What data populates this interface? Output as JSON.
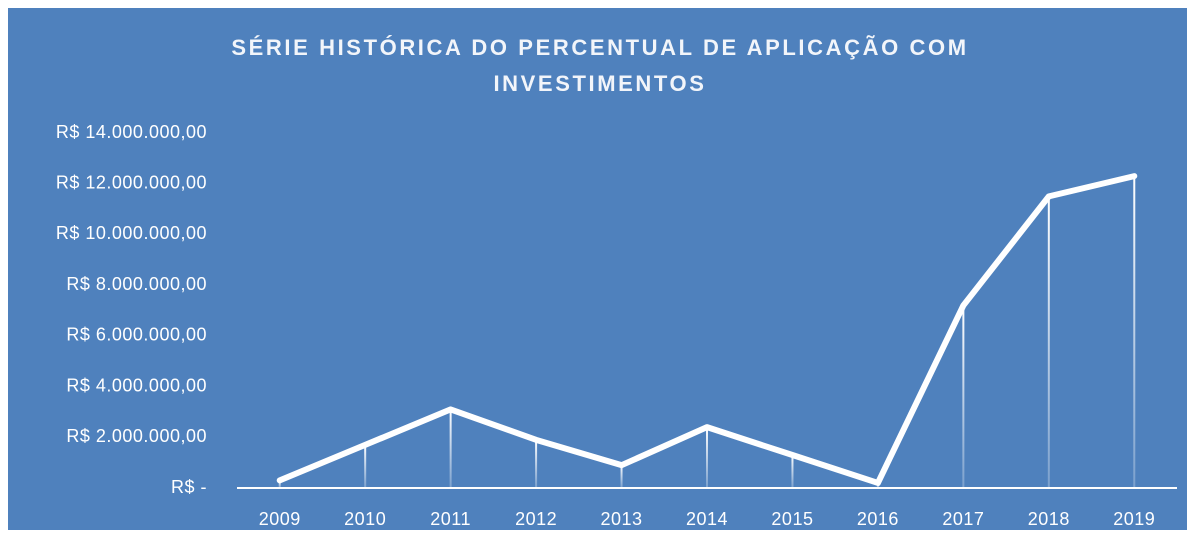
{
  "chart_data": {
    "type": "line",
    "title": "SÉRIE HISTÓRICA DO PERCENTUAL DE APLICAÇÃO COM INVESTIMENTOS",
    "categories": [
      "2009",
      "2010",
      "2011",
      "2012",
      "2013",
      "2014",
      "2015",
      "2016",
      "2017",
      "2018",
      "2019"
    ],
    "values": [
      300000,
      1700000,
      3100000,
      1900000,
      900000,
      2400000,
      1300000,
      200000,
      7200000,
      11500000,
      12300000
    ],
    "color": "#ffffff",
    "ylim": [
      0,
      14000000
    ],
    "yticks": [
      {
        "value": 0,
        "label": "R$ -"
      },
      {
        "value": 2000000,
        "label": "R$ 2.000.000,00"
      },
      {
        "value": 4000000,
        "label": "R$ 4.000.000,00"
      },
      {
        "value": 6000000,
        "label": "R$ 6.000.000,00"
      },
      {
        "value": 8000000,
        "label": "R$ 8.000.000,00"
      },
      {
        "value": 10000000,
        "label": "R$ 10.000.000,00"
      },
      {
        "value": 12000000,
        "label": "R$ 12.000.000,00"
      },
      {
        "value": 14000000,
        "label": "R$ 14.000.000,00"
      }
    ],
    "grid": false,
    "drop_lines": true
  }
}
